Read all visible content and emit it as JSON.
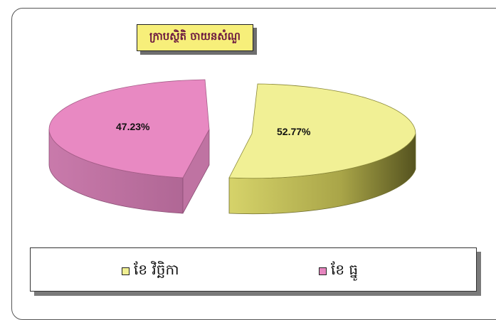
{
  "chart_data": {
    "type": "pie",
    "title": "ក្រាបស្ថិតិ ចាយនសំណួ",
    "slices": [
      {
        "label": "ខែ វិច្ឆិកា",
        "value": 52.77,
        "display": "52.77%",
        "color": "#f0ef92",
        "side_color": "#b9b651"
      },
      {
        "label": "ខែ ធ្នូ",
        "value": 47.23,
        "display": "47.23%",
        "color": "#e686bf",
        "side_color": "#b7699b"
      }
    ],
    "legend_position": "bottom"
  }
}
